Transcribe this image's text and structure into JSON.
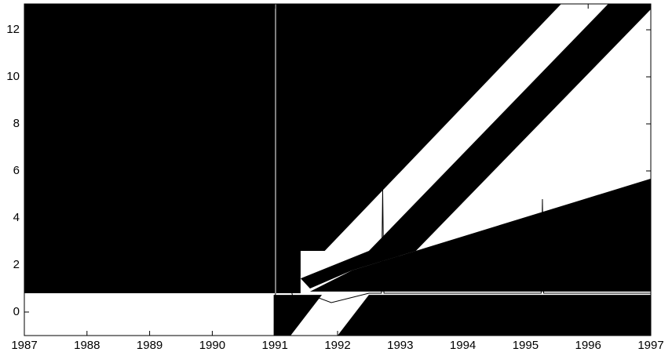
{
  "chart_data": {
    "type": "area",
    "xlim": [
      1987,
      1997
    ],
    "ylim": [
      -1,
      13.1
    ],
    "xticks": [
      1987,
      1988,
      1989,
      1990,
      1991,
      1992,
      1993,
      1994,
      1995,
      1996,
      1997
    ],
    "yticks": [
      0,
      2,
      4,
      6,
      8,
      10,
      12
    ],
    "polygons": [
      {
        "color": "#000000",
        "x": [
          1987,
          1995.57,
          1991.41,
          1991.41,
          1987
        ],
        "values": [
          13.1,
          13.1,
          1.53,
          0.8,
          0.8
        ]
      },
      {
        "color": "#ffffff",
        "x": [
          1991.41,
          1993.25,
          1993.25,
          1991.41
        ],
        "values": [
          2.6,
          2.6,
          0.8,
          0.8
        ]
      },
      {
        "color": "#000000",
        "x": [
          1996.32,
          1997,
          1997,
          1993.25,
          1992.23,
          1991.56,
          1991.41,
          1992.5
        ],
        "values": [
          13.1,
          13.1,
          12.87,
          2.6,
          1.77,
          1.0,
          1.43,
          2.6
        ]
      },
      {
        "color": "#000000",
        "x": [
          1992.23,
          1997,
          1997,
          1991.56
        ],
        "values": [
          1.77,
          5.67,
          0.87,
          0.87
        ]
      },
      {
        "color": "#000000",
        "x": [
          1990.98,
          1991.75,
          1991.25,
          1990.98
        ],
        "values": [
          0.73,
          0.73,
          -1,
          -1
        ]
      },
      {
        "color": "#000000",
        "x": [
          1992.5,
          1997,
          1997,
          1992.0
        ],
        "values": [
          0.73,
          0.73,
          -1,
          -1
        ]
      }
    ],
    "series": [
      {
        "color": "#000000",
        "x": [
          1991.0,
          1991.1,
          1991.3,
          1991.6,
          1991.9,
          1992.2,
          1992.5,
          1992.7,
          1992.72,
          1992.74,
          1993.5,
          1994.5,
          1995.25,
          1995.27,
          1995.29,
          1996,
          1997
        ],
        "values": [
          0.6,
          2.6,
          0.5,
          0.7,
          0.4,
          0.6,
          0.8,
          0.8,
          5.2,
          0.8,
          0.8,
          0.8,
          0.8,
          4.8,
          0.8,
          0.8,
          0.8
        ]
      },
      {
        "color": "#ffffff",
        "x": [
          1991.01,
          1991.01
        ],
        "values": [
          0.8,
          13.1
        ]
      }
    ]
  }
}
